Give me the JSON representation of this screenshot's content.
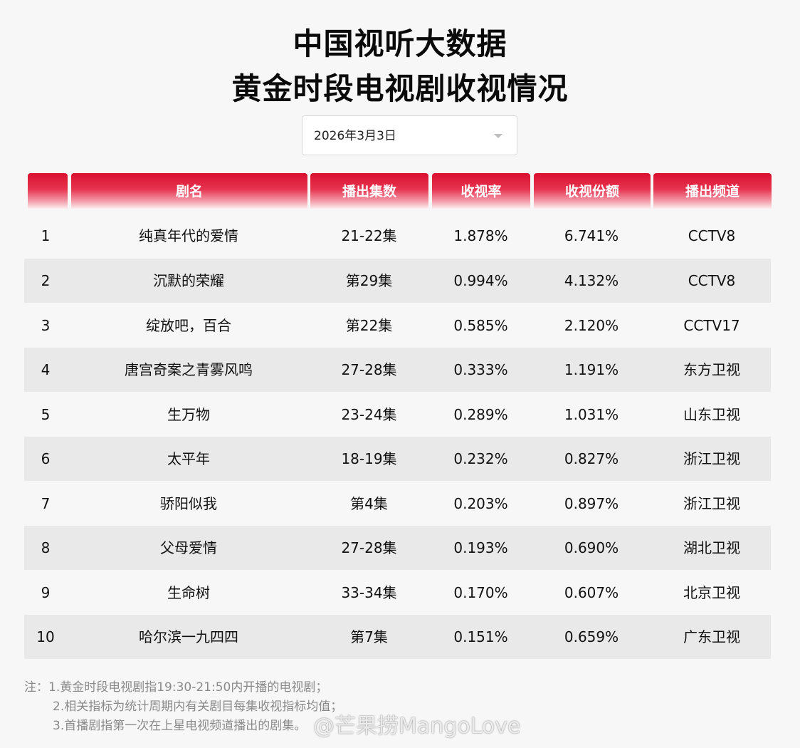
{
  "title": {
    "line1": "中国视听大数据",
    "line2": "黄金时段电视剧收视情况"
  },
  "date_select": {
    "value": "2026年3月3日"
  },
  "table": {
    "headers": [
      "",
      "剧名",
      "播出集数",
      "收视率",
      "收视份额",
      "播出频道"
    ],
    "rows": [
      {
        "rank": "1",
        "name": "纯真年代的爱情",
        "episodes": "21-22集",
        "rating": "1.878%",
        "share": "6.741%",
        "channel": "CCTV8"
      },
      {
        "rank": "2",
        "name": "沉默的荣耀",
        "episodes": "第29集",
        "rating": "0.994%",
        "share": "4.132%",
        "channel": "CCTV8"
      },
      {
        "rank": "3",
        "name": "绽放吧，百合",
        "episodes": "第22集",
        "rating": "0.585%",
        "share": "2.120%",
        "channel": "CCTV17"
      },
      {
        "rank": "4",
        "name": "唐宫奇案之青雾风鸣",
        "episodes": "27-28集",
        "rating": "0.333%",
        "share": "1.191%",
        "channel": "东方卫视"
      },
      {
        "rank": "5",
        "name": "生万物",
        "episodes": "23-24集",
        "rating": "0.289%",
        "share": "1.031%",
        "channel": "山东卫视"
      },
      {
        "rank": "6",
        "name": "太平年",
        "episodes": "18-19集",
        "rating": "0.232%",
        "share": "0.827%",
        "channel": "浙江卫视"
      },
      {
        "rank": "7",
        "name": "骄阳似我",
        "episodes": "第4集",
        "rating": "0.203%",
        "share": "0.897%",
        "channel": "浙江卫视"
      },
      {
        "rank": "8",
        "name": "父母爱情",
        "episodes": "27-28集",
        "rating": "0.193%",
        "share": "0.690%",
        "channel": "湖北卫视"
      },
      {
        "rank": "9",
        "name": "生命树",
        "episodes": "33-34集",
        "rating": "0.170%",
        "share": "0.607%",
        "channel": "北京卫视"
      },
      {
        "rank": "10",
        "name": "哈尔滨一九四四",
        "episodes": "第7集",
        "rating": "0.151%",
        "share": "0.659%",
        "channel": "广东卫视"
      }
    ]
  },
  "notes": {
    "line1": "注：1.黄金时段电视剧指19:30-21:50内开播的电视剧；",
    "line2": "2.相关指标为统计周期内有关剧目每集收视指标均值；",
    "line3": "3.首播剧指第一次在上星电视频道播出的剧集。"
  },
  "watermark": "@芒果捞MangoLove",
  "colors": {
    "header_red": "#d9112f",
    "row_alt_bg": "#e9e9e9",
    "page_bg": "#f7f7f7",
    "note_gray": "#8a8a8a"
  }
}
